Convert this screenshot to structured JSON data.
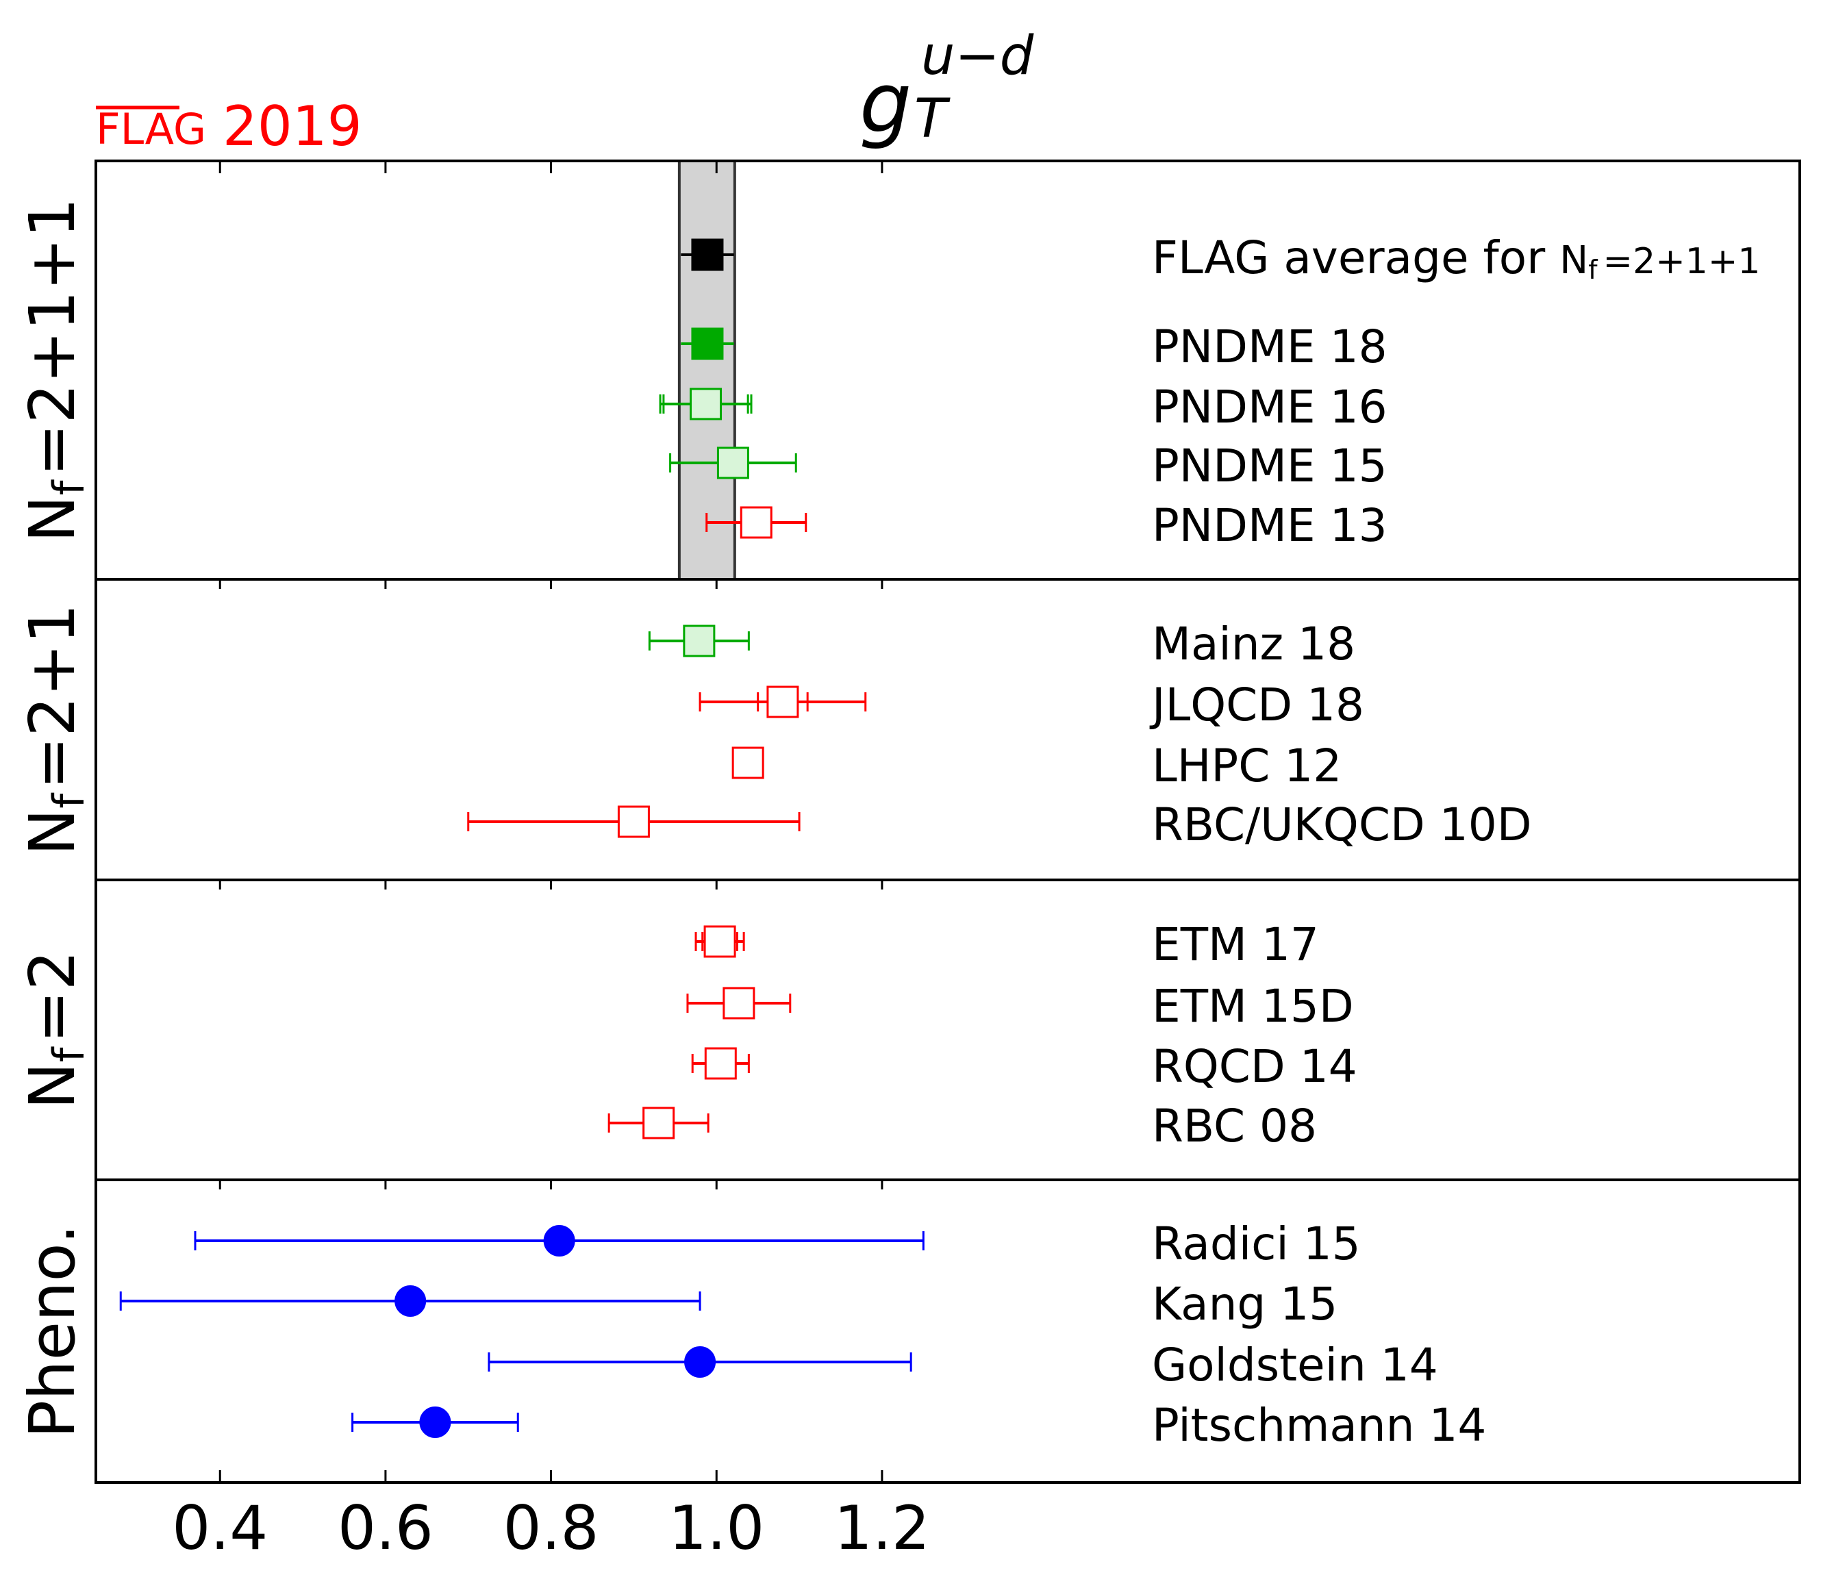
{
  "chart_data": {
    "type": "forest",
    "title": "g",
    "title_sup": "u−d",
    "title_sub": "T",
    "logo": {
      "overlined": "FLAG",
      "year": "2019",
      "color": "#ff0000"
    },
    "xlim": [
      0.25,
      1.65
    ],
    "xticks": [
      "0.4",
      "0.6",
      "0.8",
      "1.0",
      "1.2"
    ],
    "band": {
      "lo": 0.955,
      "hi": 1.022,
      "color": "#d3d3d3"
    },
    "panels": [
      {
        "label": "Nf=2+1+1",
        "label_main": "N",
        "label_sub": "f",
        "label_rest": "=2+1+1",
        "entries": [
          {
            "name": "FLAG average for ",
            "name_tail": "=2+1+1",
            "has_nf": true,
            "value": 0.989,
            "stat": 0.032,
            "err": 0.032,
            "marker": "square",
            "fill": "#000000",
            "color": "#000000",
            "caps": false
          },
          {
            "name": "PNDME 18",
            "value": 0.989,
            "stat": 0.025,
            "err": 0.032,
            "marker": "square",
            "fill": "#00aa00",
            "color": "#00aa00",
            "caps": false
          },
          {
            "name": "PNDME 16",
            "value": 0.987,
            "stat": 0.051,
            "err": 0.055,
            "marker": "square",
            "fill": "#d9f5d9",
            "color": "#00aa00",
            "caps": true
          },
          {
            "name": "PNDME 15",
            "value": 1.02,
            "stat": 0.076,
            "err": 0.076,
            "marker": "square",
            "fill": "#d9f5d9",
            "color": "#00aa00",
            "caps": true
          },
          {
            "name": "PNDME 13",
            "value": 1.048,
            "stat": 0.06,
            "err": 0.06,
            "marker": "square",
            "fill": "#ffffff",
            "color": "#ff0000",
            "caps": true
          }
        ]
      },
      {
        "label": "Nf=2+1",
        "label_main": "N",
        "label_sub": "f",
        "label_rest": "=2+1",
        "entries": [
          {
            "name": "Mainz 18",
            "value": 0.979,
            "stat": 0.06,
            "err": 0.06,
            "marker": "square",
            "fill": "#d9f5d9",
            "color": "#00aa00",
            "caps": true
          },
          {
            "name": "JLQCD 18",
            "value": 1.08,
            "stat": 0.03,
            "err": 0.1,
            "marker": "square",
            "fill": "#ffffff",
            "color": "#ff0000",
            "caps": true
          },
          {
            "name": "LHPC 12",
            "value": 1.038,
            "stat": 0.011,
            "err": 0.011,
            "marker": "square",
            "fill": "#ffffff",
            "color": "#ff0000",
            "caps": true
          },
          {
            "name": "RBC/UKQCD 10D",
            "value": 0.9,
            "stat": 0.2,
            "err": 0.2,
            "marker": "square",
            "fill": "#ffffff",
            "color": "#ff0000",
            "caps": true
          }
        ]
      },
      {
        "label": "Nf=2",
        "label_main": "N",
        "label_sub": "f",
        "label_rest": "=2",
        "entries": [
          {
            "name": "ETM 17",
            "value": 1.004,
            "stat": 0.021,
            "err": 0.029,
            "marker": "square",
            "fill": "#ffffff",
            "color": "#ff0000",
            "caps": true
          },
          {
            "name": "ETM 15D",
            "value": 1.027,
            "stat": 0.062,
            "err": 0.062,
            "marker": "square",
            "fill": "#ffffff",
            "color": "#ff0000",
            "caps": true
          },
          {
            "name": "RQCD 14",
            "value": 1.005,
            "stat": 0.017,
            "err": 0.034,
            "marker": "square",
            "fill": "#ffffff",
            "color": "#ff0000",
            "caps": true
          },
          {
            "name": "RBC 08",
            "value": 0.93,
            "stat": 0.06,
            "err": 0.06,
            "marker": "square",
            "fill": "#ffffff",
            "color": "#ff0000",
            "caps": true
          }
        ]
      },
      {
        "label": "Pheno.",
        "label_main": "Pheno.",
        "label_sub": "",
        "label_rest": "",
        "entries": [
          {
            "name": "Radici 15",
            "value": 0.81,
            "lo": 0.37,
            "hi": 1.25,
            "marker": "circle",
            "fill": "#0000ff",
            "color": "#0000ff",
            "caps": true
          },
          {
            "name": "Kang 15",
            "value": 0.63,
            "lo": 0.28,
            "hi": 0.98,
            "marker": "circle",
            "fill": "#0000ff",
            "color": "#0000ff",
            "caps": true
          },
          {
            "name": "Goldstein 14",
            "value": 0.98,
            "lo": 0.725,
            "hi": 1.235,
            "marker": "circle",
            "fill": "#0000ff",
            "color": "#0000ff",
            "caps": true
          },
          {
            "name": "Pitschmann 14",
            "value": 0.66,
            "lo": 0.56,
            "hi": 0.76,
            "marker": "circle",
            "fill": "#0000ff",
            "color": "#0000ff",
            "caps": true
          }
        ]
      }
    ]
  }
}
